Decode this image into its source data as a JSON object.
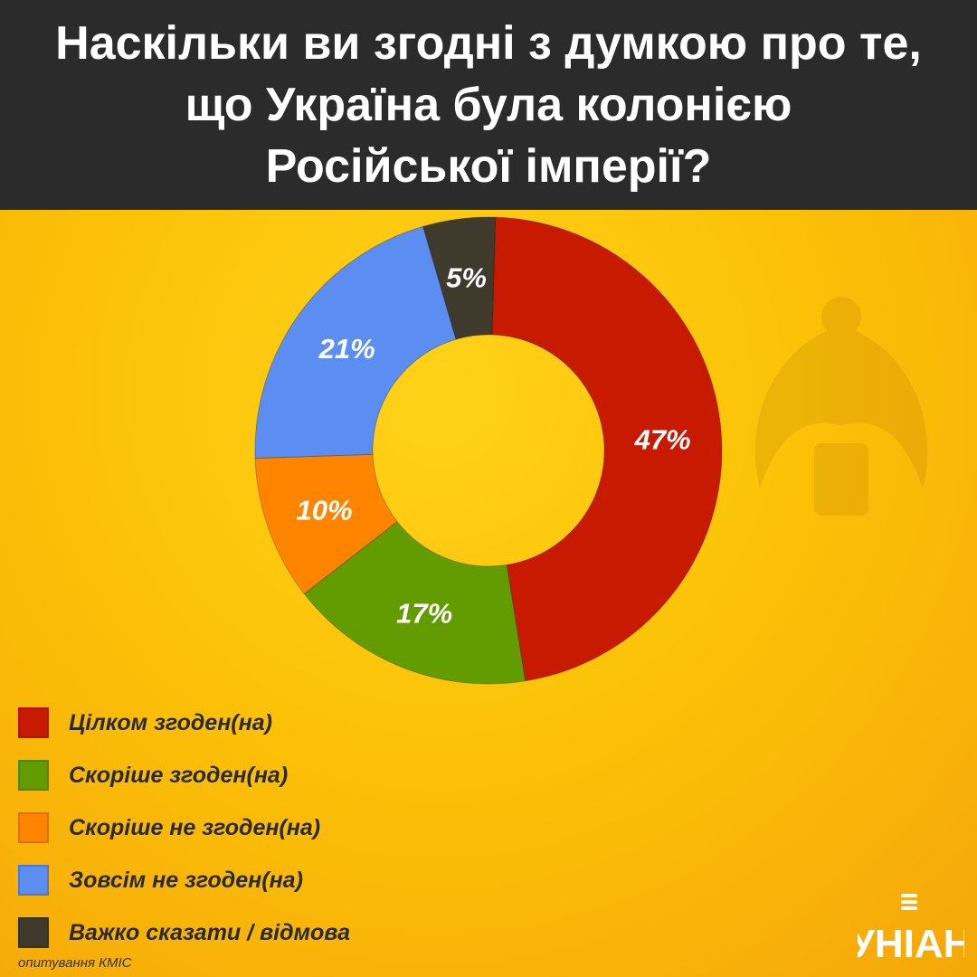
{
  "title": "Наскільки ви згодні з думкою про те,\nщо Україна була колонією\nРосійської імперії?",
  "chart_data": {
    "type": "pie",
    "donut": true,
    "series": [
      {
        "label": "Цілком згоден(на)",
        "value": 47,
        "color": "#c81a00",
        "display": "47%"
      },
      {
        "label": "Скоріше згоден(на)",
        "value": 17,
        "color": "#629c00",
        "display": "17%"
      },
      {
        "label": "Скоріше не згоден(на)",
        "value": 10,
        "color": "#ff8400",
        "display": "10%"
      },
      {
        "label": "Зовсім не згоден(на)",
        "value": 21,
        "color": "#5b8ef0",
        "display": "21%"
      },
      {
        "label": "Важко сказати / відмова",
        "value": 5,
        "color": "#3f3a2c",
        "display": "5%"
      }
    ],
    "legend_placement": "bottom-left"
  },
  "source": "опитування  КМІС",
  "logo_text": "УНІАН"
}
